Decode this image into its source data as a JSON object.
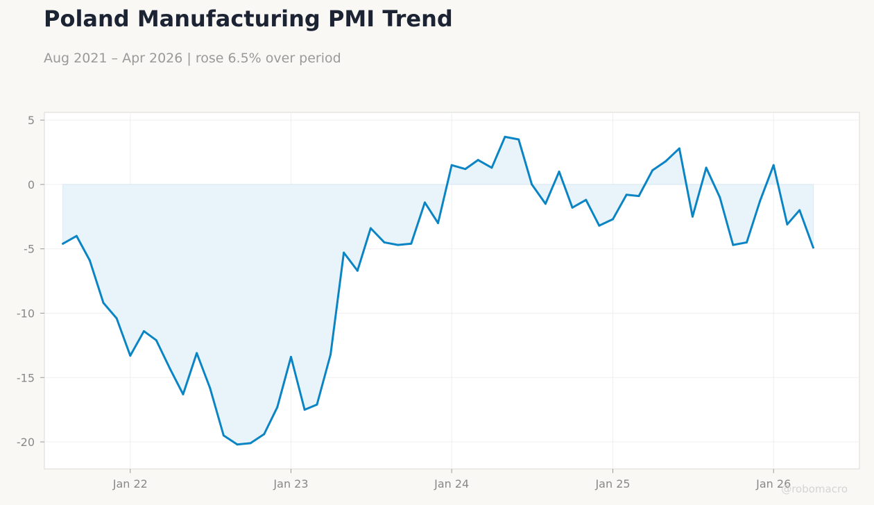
{
  "title": "Poland Manufacturing PMI Trend",
  "subtitle": "Aug 2021 – Apr 2026 | rose 6.5% over period",
  "watermark": "@robomacro",
  "colors": {
    "line": "#0b84c4",
    "fill": "#e9f3fa",
    "grid": "#efefef",
    "background": "#f9f8f5",
    "plot": "#ffffff"
  },
  "chart_data": {
    "type": "area",
    "title": "Poland Manufacturing PMI Trend",
    "xlabel": "",
    "ylabel": "",
    "xlim": [
      "2021-06-20",
      "2026-07-15"
    ],
    "ylim": [
      -22.1,
      5.6
    ],
    "grid": true,
    "legend": "none",
    "x_ticks": [
      {
        "date": "2022-01-01",
        "label": "Jan 22"
      },
      {
        "date": "2023-01-01",
        "label": "Jan 23"
      },
      {
        "date": "2024-01-01",
        "label": "Jan 24"
      },
      {
        "date": "2025-01-01",
        "label": "Jan 25"
      },
      {
        "date": "2026-01-01",
        "label": "Jan 26"
      }
    ],
    "y_ticks": [
      {
        "value": 5,
        "label": "5"
      },
      {
        "value": 0,
        "label": "0"
      },
      {
        "value": -5,
        "label": "-5"
      },
      {
        "value": -10,
        "label": "-10"
      },
      {
        "value": -15,
        "label": "-15"
      },
      {
        "value": -20,
        "label": "-20"
      }
    ],
    "series": [
      {
        "x": [
          "2021-08",
          "2021-09",
          "2021-10",
          "2021-11",
          "2021-12",
          "2022-01",
          "2022-02",
          "2022-03",
          "2022-04",
          "2022-05",
          "2022-06",
          "2022-07",
          "2022-08",
          "2022-09",
          "2022-10",
          "2022-11",
          "2022-12",
          "2023-01",
          "2023-02",
          "2023-03",
          "2023-04",
          "2023-05",
          "2023-06",
          "2023-07",
          "2023-08",
          "2023-09",
          "2023-10",
          "2023-11",
          "2023-12",
          "2024-01",
          "2024-02",
          "2024-03",
          "2024-04",
          "2024-05",
          "2024-06",
          "2024-07",
          "2024-08",
          "2024-09",
          "2024-10",
          "2024-11",
          "2024-12",
          "2025-01",
          "2025-02",
          "2025-03",
          "2025-04",
          "2025-05",
          "2025-06",
          "2025-07",
          "2025-08",
          "2025-09",
          "2025-10",
          "2025-11",
          "2025-12",
          "2026-01",
          "2026-02",
          "2026-03",
          "2026-04"
        ],
        "values": [
          -4.6,
          -4.0,
          -5.9,
          -9.2,
          -10.4,
          -13.3,
          -11.4,
          -12.1,
          -14.3,
          -16.3,
          -13.1,
          -15.8,
          -19.5,
          -20.2,
          -20.1,
          -19.4,
          -17.3,
          -13.4,
          -17.5,
          -17.1,
          -13.2,
          -5.3,
          -6.7,
          -3.4,
          -4.5,
          -4.7,
          -4.6,
          -1.4,
          -3.0,
          1.5,
          1.2,
          1.9,
          1.3,
          3.7,
          3.5,
          0.0,
          -1.5,
          1.0,
          -1.8,
          -1.2,
          -3.2,
          -2.7,
          -0.8,
          -0.9,
          1.1,
          1.8,
          2.8,
          -2.5,
          1.3,
          -1.0,
          -4.7,
          -4.5,
          -1.3,
          1.5,
          -3.1,
          -2.0,
          -4.9
        ]
      }
    ]
  }
}
